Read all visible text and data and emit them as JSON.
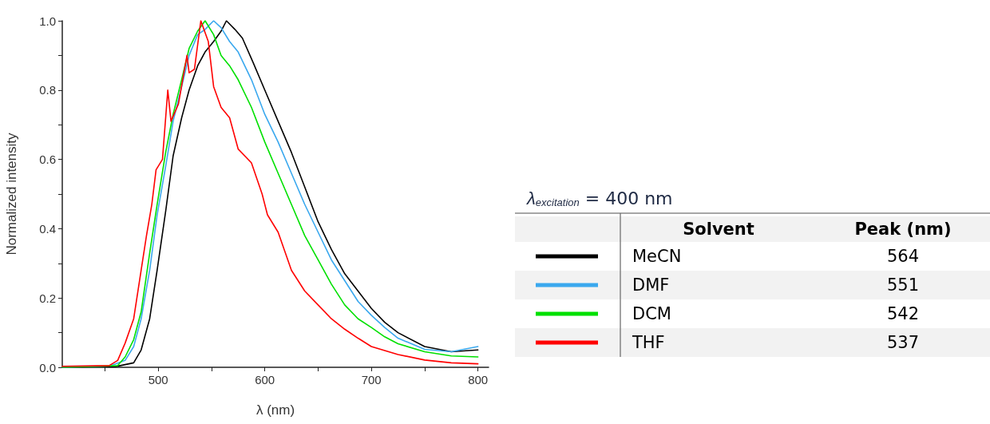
{
  "chart_data": {
    "type": "line",
    "xlabel": "λ (nm)",
    "ylabel": "Normalized intensity",
    "xlim": [
      410,
      810
    ],
    "ylim": [
      0,
      1.0
    ],
    "xticks": [
      {
        "value": 450,
        "label": null
      },
      500,
      {
        "value": 550,
        "label": null
      },
      600,
      {
        "value": 650,
        "label": null
      },
      700,
      {
        "value": 750,
        "label": null
      },
      800
    ],
    "yticks": [
      {
        "value": 0,
        "label": "0.0"
      },
      {
        "value": 0.1,
        "label": null
      },
      0.2,
      {
        "value": 0.3,
        "label": null
      },
      0.4,
      {
        "value": 0.5,
        "label": null
      },
      0.6,
      {
        "value": 0.7,
        "label": null
      },
      0.8,
      {
        "value": 0.9,
        "label": null
      },
      {
        "value": 1.0,
        "label": "1.0"
      }
    ],
    "grid": false,
    "legend": "right",
    "annotations": [
      "λ$_{excitation}$ = 400 nm",
      "Solvent",
      "Peak (nm)",
      "564",
      "551",
      "542",
      "537"
    ],
    "series": [
      {
        "name": "MeCN",
        "color": "#000000",
        "x": [
          410,
          460,
          477,
          484,
          492,
          499,
          507,
          514,
          522,
          529,
          537,
          544,
          552,
          559,
          564,
          572,
          579,
          589,
          600,
          612.5,
          625,
          637.5,
          650,
          662.5,
          675,
          687.5,
          700,
          712.5,
          725,
          750,
          775,
          800
        ],
        "values": [
          0,
          0.002,
          0.013,
          0.05,
          0.14,
          0.28,
          0.45,
          0.61,
          0.72,
          0.8,
          0.87,
          0.91,
          0.94,
          0.97,
          1.0,
          0.975,
          0.95,
          0.88,
          0.8,
          0.71,
          0.62,
          0.52,
          0.42,
          0.34,
          0.27,
          0.22,
          0.17,
          0.13,
          0.1,
          0.06,
          0.045,
          0.05
        ]
      },
      {
        "name": "DMF",
        "color": "#3aa8ee",
        "x": [
          410,
          455,
          469,
          477,
          484,
          492,
          499,
          507,
          514,
          522,
          529,
          537,
          544,
          552,
          559,
          567,
          575,
          587.5,
          600,
          612.5,
          625,
          637.5,
          650,
          662.5,
          675,
          687.5,
          700,
          712.5,
          725,
          750,
          775,
          800
        ],
        "values": [
          0,
          0.004,
          0.02,
          0.06,
          0.14,
          0.28,
          0.44,
          0.58,
          0.71,
          0.81,
          0.9,
          0.96,
          0.975,
          1.0,
          0.98,
          0.94,
          0.91,
          0.83,
          0.73,
          0.65,
          0.56,
          0.47,
          0.39,
          0.31,
          0.25,
          0.19,
          0.15,
          0.115,
          0.084,
          0.052,
          0.045,
          0.06
        ]
      },
      {
        "name": "DCM",
        "color": "#00e000",
        "x": [
          410,
          462,
          469,
          477,
          484,
          492,
          499,
          507,
          514,
          522,
          529,
          537,
          544,
          552,
          559,
          567,
          575,
          587.5,
          600,
          612.5,
          625,
          637.5,
          650,
          662.5,
          675,
          687.5,
          700,
          712.5,
          725,
          750,
          775,
          800
        ],
        "values": [
          0,
          0.005,
          0.03,
          0.08,
          0.16,
          0.33,
          0.47,
          0.62,
          0.73,
          0.83,
          0.92,
          0.97,
          1.0,
          0.96,
          0.9,
          0.87,
          0.83,
          0.75,
          0.65,
          0.56,
          0.47,
          0.38,
          0.31,
          0.24,
          0.18,
          0.14,
          0.115,
          0.088,
          0.068,
          0.045,
          0.033,
          0.03
        ]
      },
      {
        "name": "THF",
        "color": "#ff0000",
        "x": [
          410,
          454,
          462,
          469,
          477,
          484,
          489,
          494,
          498,
          504,
          509,
          512,
          519,
          527,
          529,
          534,
          540,
          547,
          552,
          559,
          567,
          575,
          587.5,
          597.5,
          602.5,
          612.5,
          625,
          637.5,
          650,
          662.5,
          675,
          687.5,
          700,
          725,
          750,
          775,
          800
        ],
        "values": [
          0.003,
          0.005,
          0.02,
          0.07,
          0.14,
          0.28,
          0.38,
          0.47,
          0.57,
          0.6,
          0.8,
          0.71,
          0.76,
          0.9,
          0.85,
          0.86,
          1.0,
          0.94,
          0.81,
          0.75,
          0.72,
          0.63,
          0.59,
          0.5,
          0.44,
          0.39,
          0.28,
          0.22,
          0.18,
          0.14,
          0.11,
          0.084,
          0.06,
          0.037,
          0.021,
          0.013,
          0.01
        ]
      }
    ]
  }
}
